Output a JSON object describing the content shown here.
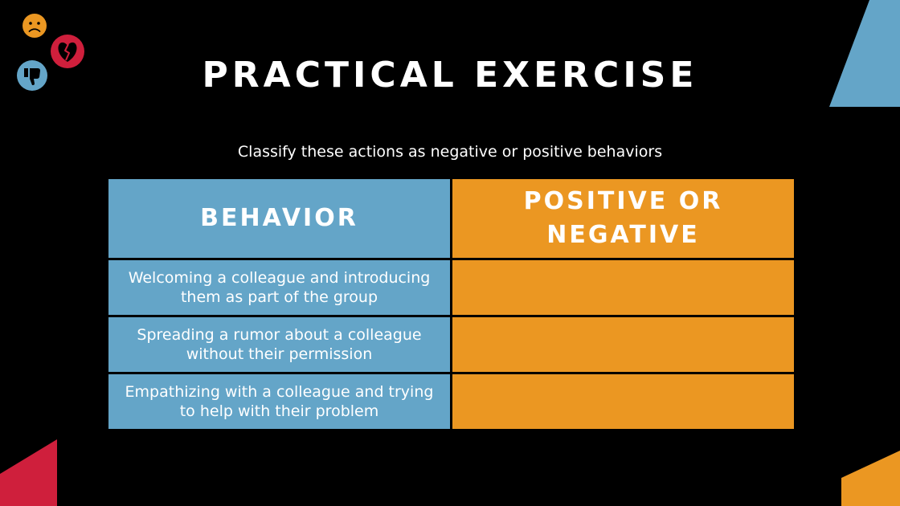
{
  "slide": {
    "title": "PRACTICAL EXERCISE",
    "subtitle": "Classify these actions as negative or positive behaviors"
  },
  "table": {
    "headers": [
      "BEHAVIOR",
      "POSITIVE OR NEGATIVE"
    ],
    "rows": [
      {
        "behavior": "Welcoming a colleague and introducing them as part of the group",
        "answer": ""
      },
      {
        "behavior": "Spreading a rumor about a colleague without their permission",
        "answer": ""
      },
      {
        "behavior": "Empathizing with a colleague and trying to help with their problem",
        "answer": ""
      }
    ]
  },
  "colors": {
    "background": "#000000",
    "blue": "#64a5c8",
    "orange": "#eb9722",
    "red": "#cf1f3c",
    "text": "#ffffff"
  },
  "icons": [
    "sad-face-icon",
    "broken-heart-icon",
    "thumbs-down-icon"
  ]
}
